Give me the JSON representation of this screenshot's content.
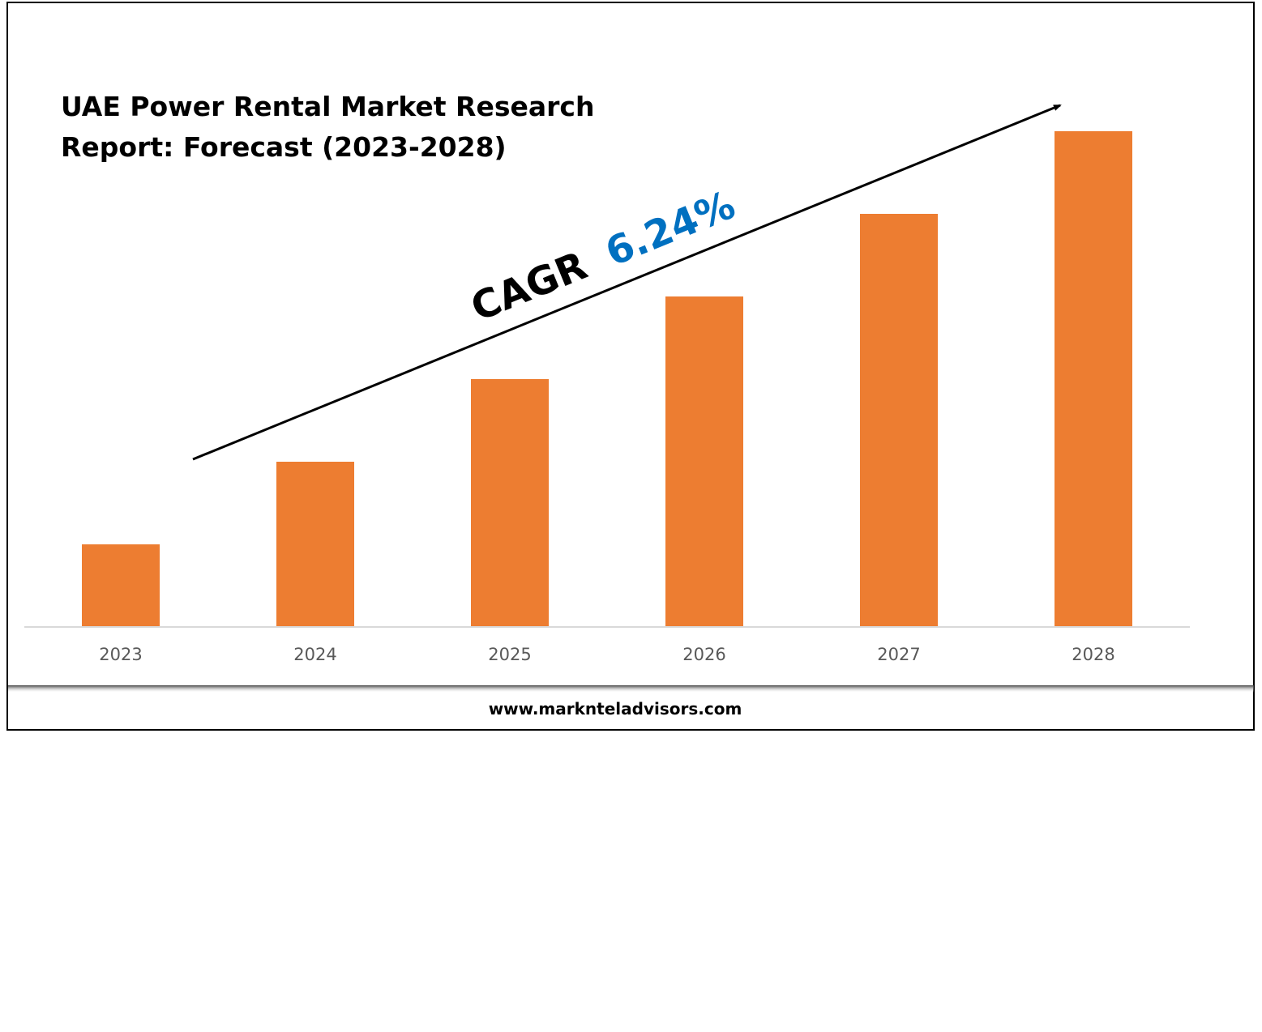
{
  "chart_data": {
    "type": "bar",
    "title_lines": [
      "UAE Power Rental Market Research",
      "Report: Forecast (2023-2028)"
    ],
    "categories": [
      "2023",
      "2024",
      "2025",
      "2026",
      "2027",
      "2028"
    ],
    "values": [
      1.0,
      2.0,
      3.0,
      4.0,
      5.0,
      6.0
    ],
    "ylim": [
      0,
      6.1
    ],
    "xlabel": "",
    "ylabel": "",
    "grid": false,
    "annotation": {
      "prefix": "CAGR",
      "value": "6.24%"
    },
    "colors": {
      "bar": "#ED7D31",
      "cagr_value": "#0070C0",
      "axis": "#D9D9D9"
    }
  },
  "footer": {
    "url": "www.marknteladvisors.com"
  }
}
